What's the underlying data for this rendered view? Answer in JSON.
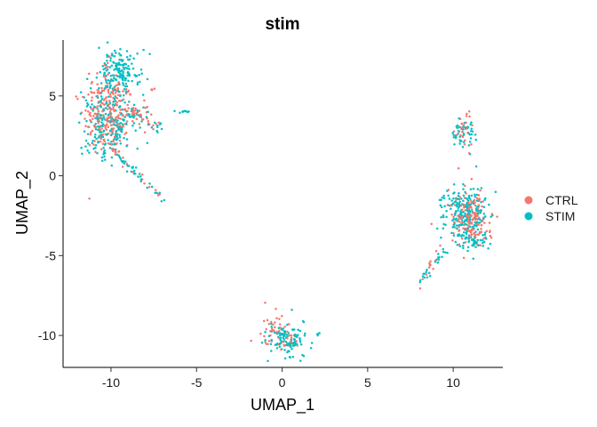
{
  "chart_data": {
    "type": "scatter",
    "title": "stim",
    "xlabel": "UMAP_1",
    "ylabel": "UMAP_2",
    "xlim": [
      -12.8,
      12.9
    ],
    "ylim": [
      -12.0,
      8.5
    ],
    "x_ticks": [
      -10,
      -5,
      0,
      5,
      10
    ],
    "x_tick_labels": [
      "-10",
      "-5",
      "0",
      "5",
      "10"
    ],
    "y_ticks": [
      -10,
      -5,
      0,
      5
    ],
    "y_tick_labels": [
      "-10",
      "-5",
      "0",
      "5"
    ],
    "grid": false,
    "legend_position": "right",
    "series": [
      {
        "name": "CTRL",
        "color": "#F8766D",
        "clusters": [
          {
            "shape": "blob",
            "cx": -10.1,
            "cy": 3.6,
            "sx": 0.75,
            "sy": 1.2,
            "n": 200
          },
          {
            "shape": "blob",
            "cx": -10.4,
            "cy": 5.6,
            "sx": 0.5,
            "sy": 0.8,
            "n": 45
          },
          {
            "shape": "blob",
            "cx": -8.6,
            "cy": 3.9,
            "sx": 0.4,
            "sy": 0.35,
            "n": 30
          },
          {
            "shape": "blob",
            "cx": -7.5,
            "cy": 5.4,
            "sx": 0.08,
            "sy": 0.05,
            "n": 4
          },
          {
            "shape": "blob",
            "cx": -7.4,
            "cy": 3.3,
            "sx": 0.2,
            "sy": 0.25,
            "n": 8
          },
          {
            "shape": "trail",
            "from": [
              -9.9,
              1.6
            ],
            "to": [
              -7.0,
              -1.5
            ],
            "n": 15,
            "spread": 0.12
          },
          {
            "shape": "blob",
            "cx": 10.7,
            "cy": 3.0,
            "sx": 0.3,
            "sy": 0.55,
            "n": 25
          },
          {
            "shape": "blob",
            "cx": 10.9,
            "cy": -2.5,
            "sx": 0.6,
            "sy": 0.85,
            "n": 130
          },
          {
            "shape": "blob",
            "cx": 11.3,
            "cy": -3.2,
            "sx": 0.45,
            "sy": 0.6,
            "n": 40
          },
          {
            "shape": "trail",
            "from": [
              9.2,
              -4.5
            ],
            "to": [
              8.0,
              -7.0
            ],
            "n": 12,
            "spread": 0.12
          },
          {
            "shape": "blob",
            "cx": -0.6,
            "cy": -9.6,
            "sx": 0.5,
            "sy": 0.6,
            "n": 40
          },
          {
            "shape": "blob",
            "cx": 0.4,
            "cy": -10.3,
            "sx": 0.35,
            "sy": 0.3,
            "n": 20
          }
        ]
      },
      {
        "name": "STIM",
        "color": "#00BFC4",
        "clusters": [
          {
            "shape": "blob",
            "cx": -9.6,
            "cy": 6.5,
            "sx": 0.6,
            "sy": 0.7,
            "n": 170
          },
          {
            "shape": "blob",
            "cx": -10.2,
            "cy": 3.2,
            "sx": 0.75,
            "sy": 1.1,
            "n": 200
          },
          {
            "shape": "blob",
            "cx": -8.7,
            "cy": 3.9,
            "sx": 0.4,
            "sy": 0.35,
            "n": 25
          },
          {
            "shape": "blob",
            "cx": -7.4,
            "cy": 3.0,
            "sx": 0.2,
            "sy": 0.3,
            "n": 10
          },
          {
            "shape": "blob",
            "cx": -5.7,
            "cy": 4.0,
            "sx": 0.3,
            "sy": 0.06,
            "n": 10
          },
          {
            "shape": "trail",
            "from": [
              -9.9,
              1.6
            ],
            "to": [
              -7.0,
              -1.5
            ],
            "n": 35,
            "spread": 0.14
          },
          {
            "shape": "blob",
            "cx": 10.6,
            "cy": 2.7,
            "sx": 0.35,
            "sy": 0.55,
            "n": 50
          },
          {
            "shape": "blob",
            "cx": 10.8,
            "cy": -2.3,
            "sx": 0.65,
            "sy": 0.9,
            "n": 230
          },
          {
            "shape": "blob",
            "cx": 11.2,
            "cy": -4.2,
            "sx": 0.4,
            "sy": 0.25,
            "n": 35
          },
          {
            "shape": "trail",
            "from": [
              9.4,
              -4.6
            ],
            "to": [
              8.0,
              -7.0
            ],
            "n": 25,
            "spread": 0.13
          },
          {
            "shape": "blob",
            "cx": 0.3,
            "cy": -10.3,
            "sx": 0.55,
            "sy": 0.5,
            "n": 110
          },
          {
            "shape": "blob",
            "cx": 2.2,
            "cy": -9.9,
            "sx": 0.08,
            "sy": 0.08,
            "n": 4
          }
        ]
      }
    ]
  }
}
